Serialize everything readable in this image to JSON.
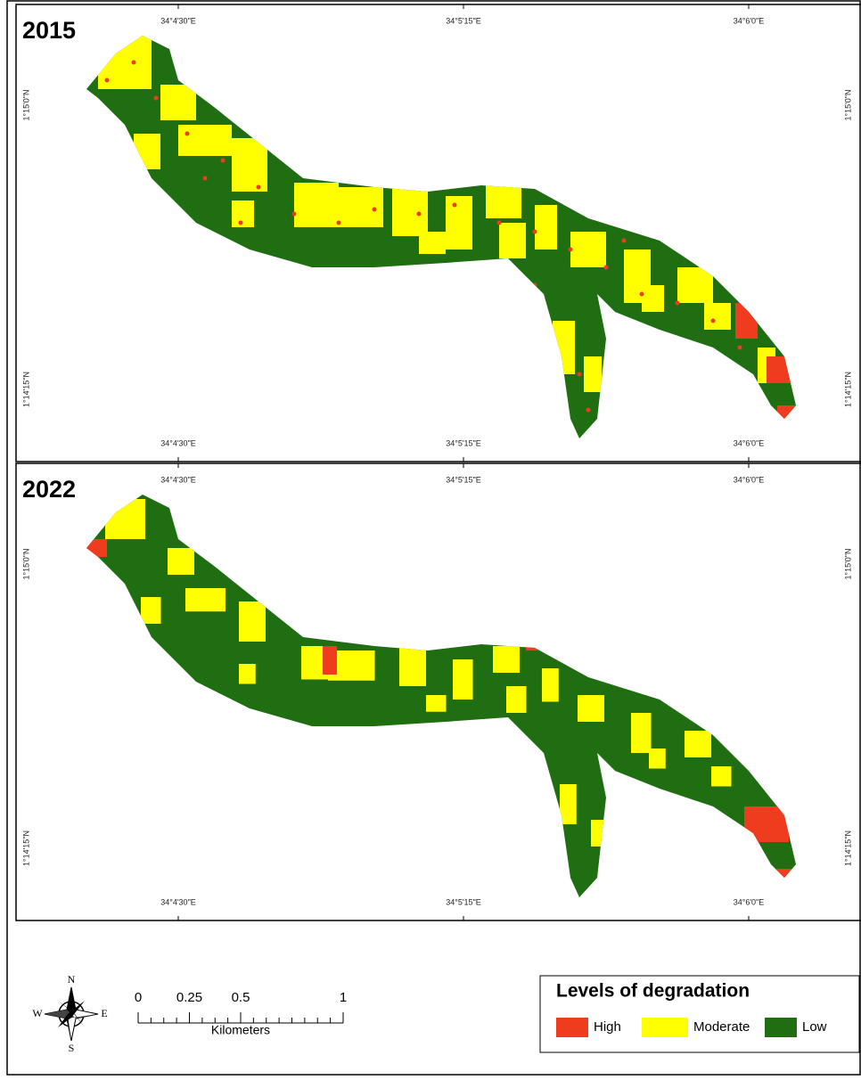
{
  "panels": [
    {
      "year": "2015",
      "top": [
        "34°4'30\"E",
        "34°5'15\"E",
        "34°6'0\"E"
      ],
      "bottom": [
        "34°4'30\"E",
        "34°5'15\"E",
        "34°6'0\"E"
      ],
      "left": [
        "1°15'0\"N",
        "1°14'15\"N"
      ],
      "right": [
        "1°15'0\"N",
        "1°14'15\"N"
      ]
    },
    {
      "year": "2022",
      "top": [
        "34°4'30\"E",
        "34°5'15\"E",
        "34°6'0\"E"
      ],
      "bottom": [
        "34°4'30\"E",
        "34°5'15\"E",
        "34°6'0\"E"
      ],
      "left": [
        "1°15'0\"N",
        "1°14'15\"N"
      ],
      "right": [
        "1°15'0\"N",
        "1°14'15\"N"
      ]
    }
  ],
  "compass": {
    "n": "N",
    "s": "S",
    "e": "E",
    "w": "W"
  },
  "scale_bar": {
    "ticks": [
      0,
      0.25,
      0.5,
      1
    ],
    "unit": "Kilometers"
  },
  "legend": {
    "title": "Levels of degradation",
    "items": [
      {
        "label": "High",
        "color": "#f03c1e"
      },
      {
        "label": "Moderate",
        "color": "#ffff00"
      },
      {
        "label": "Low",
        "color": "#1f6e12"
      }
    ]
  }
}
